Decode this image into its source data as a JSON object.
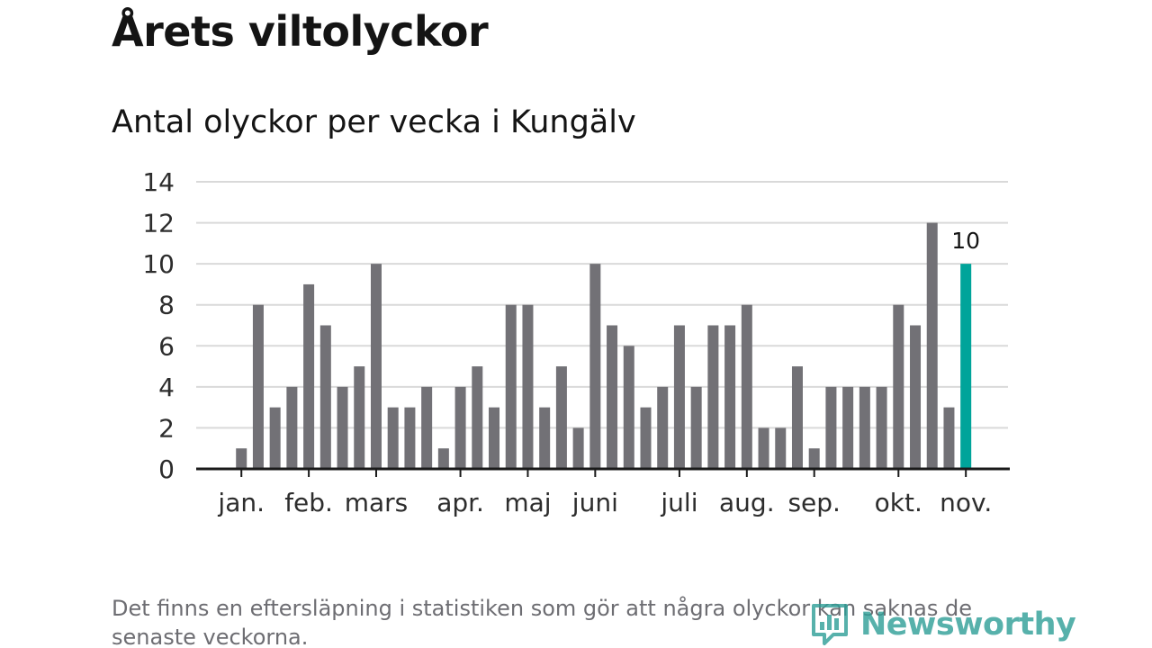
{
  "title": "Årets viltolyckor",
  "subtitle": "Antal olyckor per vecka i Kungälv",
  "footnote": "Det finns en eftersläpning i statistiken som gör att några olyckor kan saknas de senaste veckorna.",
  "logo": {
    "text": "Newsworthy",
    "icon": "newsworthy-logo-icon"
  },
  "colors": {
    "bar": "#727176",
    "highlight": "#00a49a",
    "grid": "#d9d9d9",
    "axis": "#1a1a1a",
    "tick_text": "#2d2d2d"
  },
  "chart_data": {
    "type": "bar",
    "title": "Årets viltolyckor",
    "subtitle": "Antal olyckor per vecka i Kungälv",
    "xlabel": "",
    "ylabel": "",
    "ylim": [
      0,
      14
    ],
    "yticks": [
      0,
      2,
      4,
      6,
      8,
      10,
      12,
      14
    ],
    "grid": true,
    "x_tick_labels": [
      {
        "label": "jan.",
        "week": 2
      },
      {
        "label": "feb.",
        "week": 6
      },
      {
        "label": "mars",
        "week": 10
      },
      {
        "label": "apr.",
        "week": 15
      },
      {
        "label": "maj",
        "week": 19
      },
      {
        "label": "juni",
        "week": 23
      },
      {
        "label": "juli",
        "week": 28
      },
      {
        "label": "aug.",
        "week": 32
      },
      {
        "label": "sep.",
        "week": 36
      },
      {
        "label": "okt.",
        "week": 41
      },
      {
        "label": "nov.",
        "week": 45
      }
    ],
    "weeks": [
      1,
      2,
      3,
      4,
      5,
      6,
      7,
      8,
      9,
      10,
      11,
      12,
      13,
      14,
      15,
      16,
      17,
      18,
      19,
      20,
      21,
      22,
      23,
      24,
      25,
      26,
      27,
      28,
      29,
      30,
      31,
      32,
      33,
      34,
      35,
      36,
      37,
      38,
      39,
      40,
      41,
      42,
      43,
      44,
      45
    ],
    "values": [
      0,
      1,
      8,
      3,
      4,
      9,
      7,
      4,
      5,
      10,
      3,
      3,
      4,
      1,
      4,
      5,
      3,
      8,
      8,
      3,
      5,
      2,
      10,
      7,
      6,
      3,
      4,
      7,
      4,
      7,
      7,
      8,
      2,
      2,
      5,
      1,
      4,
      4,
      4,
      4,
      8,
      7,
      12,
      3,
      10
    ],
    "highlight": {
      "week": 45,
      "value": 10,
      "label": "10"
    }
  }
}
